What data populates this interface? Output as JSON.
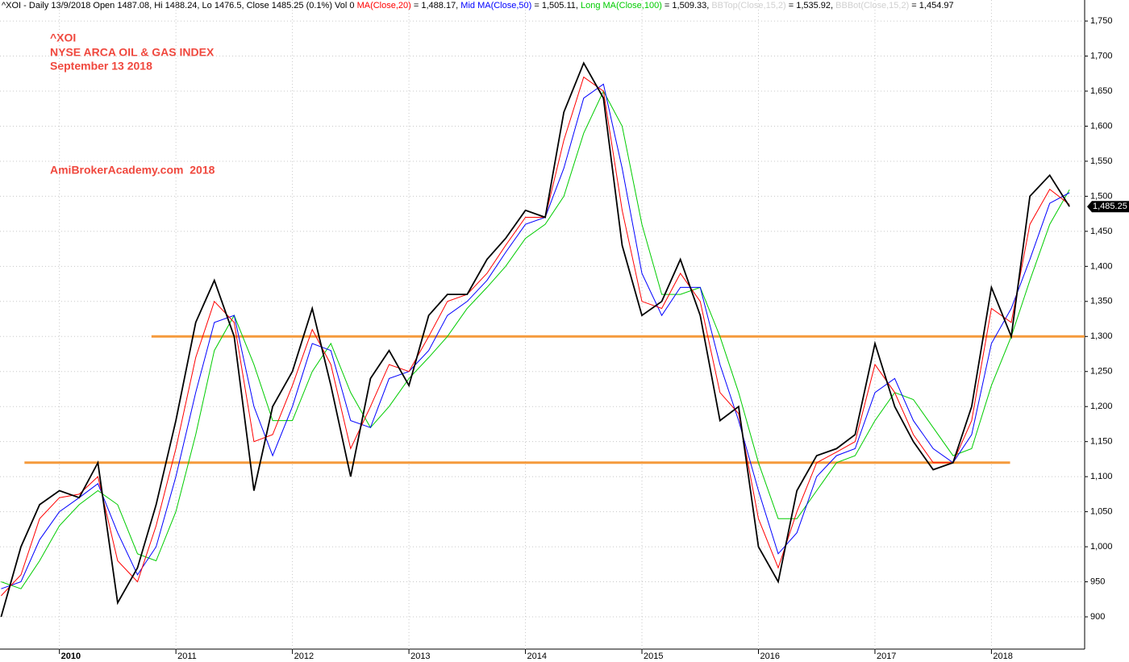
{
  "chart_data": {
    "type": "line",
    "header": [
      {
        "text": "^XOI - Daily 13/9/2018 Open 1487.08, Hi 1488.24, Lo 1476.5, Close 1485.25 (0.1%) Vol 0 ",
        "color": "#000000"
      },
      {
        "text": "MA(Close,20)",
        "color": "#ff0000"
      },
      {
        "text": " = 1,488.17, ",
        "color": "#000000"
      },
      {
        "text": "Mid MA(Close,50)",
        "color": "#0000ff"
      },
      {
        "text": " = 1,505.11, ",
        "color": "#000000"
      },
      {
        "text": "Long MA(Close,100)",
        "color": "#00cc00"
      },
      {
        "text": " = 1,509.33, ",
        "color": "#000000"
      },
      {
        "text": "BBTop(Close,15,2)",
        "color": "#d0d0d0"
      },
      {
        "text": " = 1,535.92, ",
        "color": "#000000"
      },
      {
        "text": "BBBot(Close,15,2)",
        "color": "#d0d0d0"
      },
      {
        "text": " = 1,454.97",
        "color": "#000000"
      }
    ],
    "annotations": [
      "^XOI",
      "NYSE ARCA OIL & GAS INDEX",
      "September 13 2018",
      "AmiBrokerAcademy.com  2018"
    ],
    "x": [
      2009.5,
      2009.67,
      2009.83,
      2010,
      2010.17,
      2010.33,
      2010.5,
      2010.67,
      2010.83,
      2011,
      2011.17,
      2011.33,
      2011.5,
      2011.67,
      2011.83,
      2012,
      2012.17,
      2012.33,
      2012.5,
      2012.67,
      2012.83,
      2013,
      2013.17,
      2013.33,
      2013.5,
      2013.67,
      2013.83,
      2014,
      2014.17,
      2014.33,
      2014.5,
      2014.67,
      2014.83,
      2015,
      2015.17,
      2015.33,
      2015.5,
      2015.67,
      2015.83,
      2016,
      2016.17,
      2016.33,
      2016.5,
      2016.67,
      2016.83,
      2017,
      2017.17,
      2017.33,
      2017.5,
      2017.67,
      2017.83,
      2018,
      2018.17,
      2018.33,
      2018.5,
      2018.67
    ],
    "series": [
      {
        "color": "#000000",
        "values": [
          900,
          1000,
          1060,
          1080,
          1070,
          1120,
          920,
          970,
          1060,
          1180,
          1320,
          1380,
          1300,
          1080,
          1200,
          1250,
          1340,
          1230,
          1100,
          1240,
          1280,
          1230,
          1330,
          1360,
          1360,
          1410,
          1440,
          1480,
          1470,
          1620,
          1690,
          1640,
          1430,
          1330,
          1350,
          1410,
          1330,
          1180,
          1200,
          1000,
          950,
          1080,
          1130,
          1140,
          1160,
          1290,
          1200,
          1150,
          1110,
          1120,
          1200,
          1370,
          1300,
          1500,
          1530,
          1485.25
        ]
      },
      {
        "color": "#ff0000",
        "values": [
          930,
          960,
          1040,
          1070,
          1075,
          1100,
          980,
          950,
          1030,
          1140,
          1270,
          1350,
          1320,
          1150,
          1160,
          1230,
          1310,
          1260,
          1140,
          1200,
          1260,
          1250,
          1300,
          1350,
          1360,
          1390,
          1430,
          1470,
          1470,
          1580,
          1670,
          1650,
          1480,
          1350,
          1340,
          1390,
          1350,
          1220,
          1190,
          1040,
          970,
          1050,
          1120,
          1135,
          1150,
          1260,
          1220,
          1160,
          1120,
          1120,
          1180,
          1340,
          1320,
          1460,
          1510,
          1488.17
        ]
      },
      {
        "color": "#0000ff",
        "values": [
          940,
          950,
          1010,
          1050,
          1070,
          1090,
          1020,
          960,
          1000,
          1100,
          1220,
          1320,
          1330,
          1200,
          1130,
          1200,
          1290,
          1280,
          1180,
          1170,
          1240,
          1250,
          1280,
          1330,
          1350,
          1380,
          1420,
          1460,
          1470,
          1540,
          1640,
          1660,
          1540,
          1390,
          1330,
          1370,
          1370,
          1260,
          1180,
          1080,
          990,
          1020,
          1100,
          1130,
          1140,
          1220,
          1240,
          1180,
          1140,
          1120,
          1160,
          1290,
          1340,
          1410,
          1490,
          1505.11
        ]
      },
      {
        "color": "#00cc00",
        "values": [
          950,
          940,
          980,
          1030,
          1060,
          1080,
          1060,
          990,
          980,
          1050,
          1160,
          1280,
          1330,
          1260,
          1180,
          1180,
          1250,
          1290,
          1220,
          1170,
          1200,
          1240,
          1270,
          1300,
          1340,
          1370,
          1400,
          1440,
          1460,
          1500,
          1590,
          1650,
          1600,
          1460,
          1360,
          1360,
          1370,
          1300,
          1220,
          1120,
          1040,
          1040,
          1080,
          1120,
          1130,
          1180,
          1220,
          1210,
          1170,
          1130,
          1140,
          1230,
          1300,
          1380,
          1460,
          1509.33
        ]
      }
    ],
    "hlines": [
      {
        "value": 1300,
        "xlim": [
          2010.79,
          2018.8
        ],
        "color": "#f59a3c"
      },
      {
        "value": 1120,
        "xlim": [
          2009.7,
          2018.16
        ],
        "color": "#f59a3c"
      }
    ],
    "last_label": {
      "value": 1485.25,
      "label": "1,485.25"
    },
    "xlim": [
      2009.49,
      2018.8
    ],
    "xticks": [
      2010,
      2011,
      2012,
      2013,
      2014,
      2015,
      2016,
      2017,
      2018
    ],
    "ylim": [
      854,
      1780
    ],
    "yticks": [
      900,
      950,
      {
        "value": 1000,
        "label": "1,000"
      },
      {
        "value": 1050,
        "label": "1,050"
      },
      {
        "value": 1100,
        "label": "1,100"
      },
      {
        "value": 1150,
        "label": "1,150"
      },
      {
        "value": 1200,
        "label": "1,200"
      },
      {
        "value": 1250,
        "label": "1,250"
      },
      {
        "value": 1300,
        "label": "1,300"
      },
      {
        "value": 1350,
        "label": "1,350"
      },
      {
        "value": 1400,
        "label": "1,400"
      },
      {
        "value": 1450,
        "label": "1,450"
      },
      {
        "value": 1500,
        "label": "1,500"
      },
      {
        "value": 1550,
        "label": "1,550"
      },
      {
        "value": 1600,
        "label": "1,600"
      },
      {
        "value": 1650,
        "label": "1,650"
      },
      {
        "value": 1700,
        "label": "1,700"
      },
      {
        "value": 1750,
        "label": "1,750"
      }
    ],
    "grid": true
  }
}
